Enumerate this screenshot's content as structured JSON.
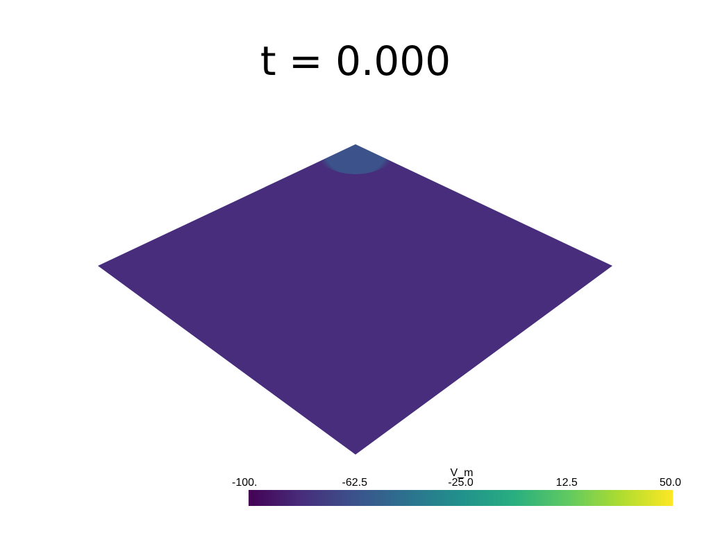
{
  "chart_data": {
    "type": "heatmap",
    "title": "t = 0.000",
    "field": "V_m",
    "clim": [
      -100,
      50
    ],
    "tick_labels": [
      "-100.",
      "-62.5",
      "-25.0",
      "12.5",
      "50.0"
    ],
    "tick_values": [
      -100,
      -62.5,
      -25.0,
      12.5,
      50.0
    ],
    "colormap": "viridis",
    "surface_value": -90,
    "stimulus_value": -62,
    "stimulus_location": "top corner"
  },
  "colors": {
    "background": "#ffffff",
    "text": "#000000"
  }
}
